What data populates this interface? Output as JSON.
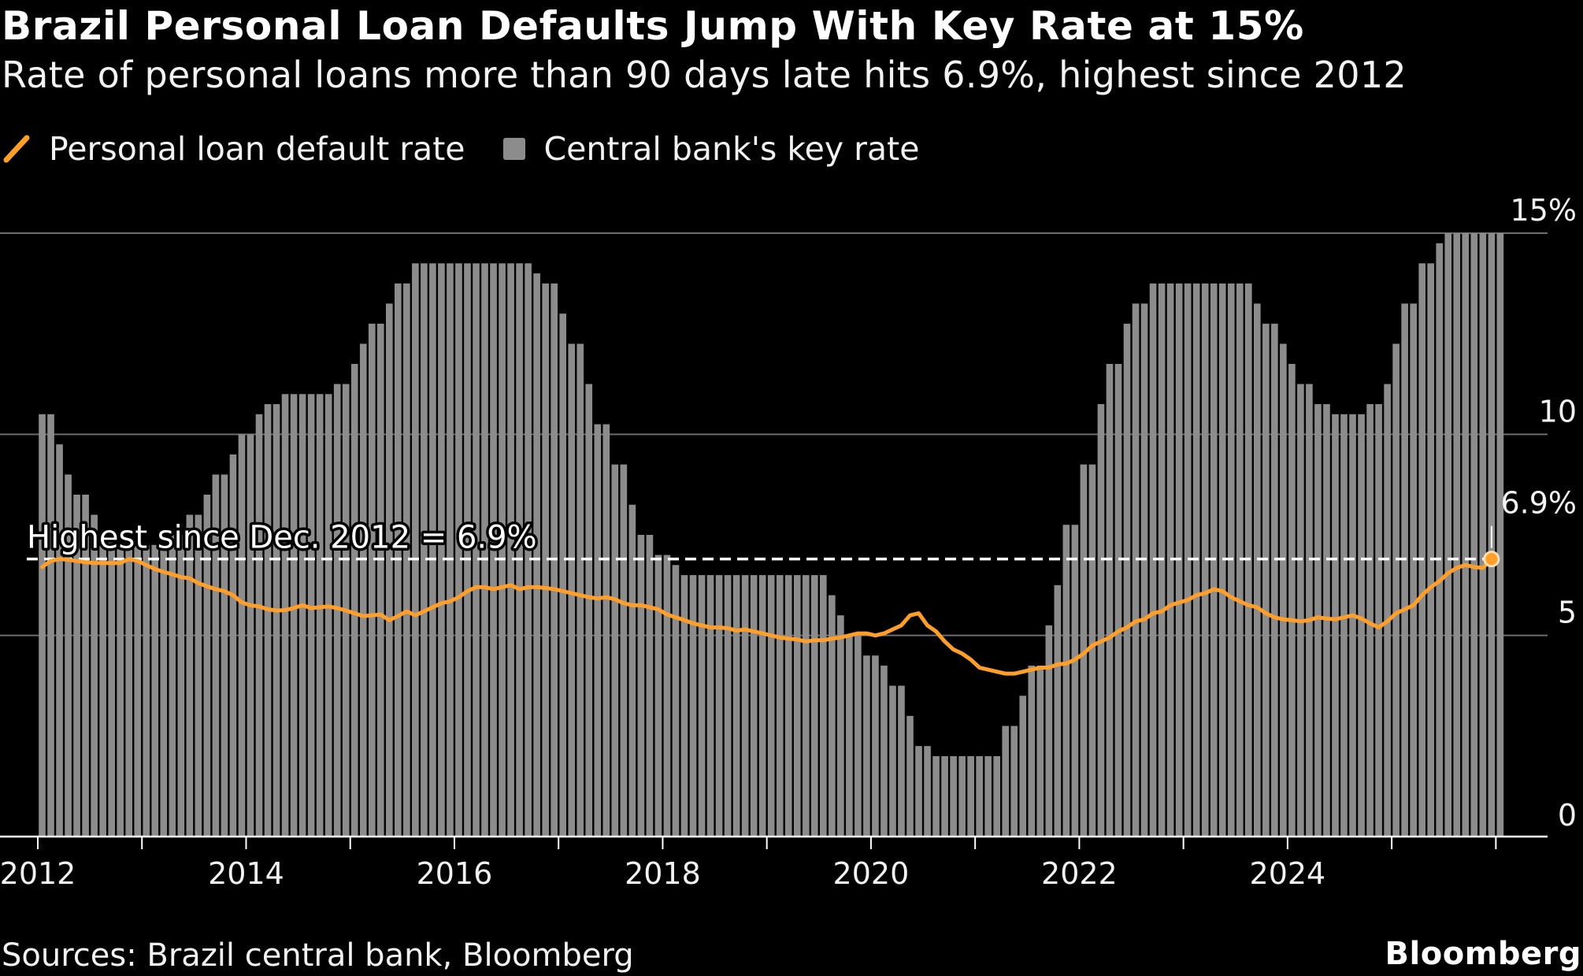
{
  "header": {
    "title": "Brazil Personal Loan Defaults Jump With Key Rate at 15%",
    "subtitle": "Rate of personal loans more than 90 days late hits 6.9%, highest since 2012"
  },
  "legend": {
    "line_label": "Personal loan default rate",
    "bar_label": "Central bank's key rate"
  },
  "footer": {
    "source": "Sources: Brazil central bank, Bloomberg",
    "brand": "Bloomberg"
  },
  "colors": {
    "background": "#000000",
    "line": "#ff9f2a",
    "bars": "#8c8c8c",
    "grid": "#6e6e6e",
    "reference": "#ffffff"
  },
  "chart_data": {
    "type": "bar+line",
    "title": "Brazil Personal Loan Defaults Jump With Key Rate at 15%",
    "start": "2012-01",
    "frequency": "monthly",
    "ylim": [
      0,
      15
    ],
    "y_ticks": [
      {
        "value": 0,
        "label": "0"
      },
      {
        "value": 5,
        "label": "5"
      },
      {
        "value": 10,
        "label": "10"
      },
      {
        "value": 15,
        "label": "15%"
      }
    ],
    "x_ticks": [
      "2012",
      "2014",
      "2016",
      "2018",
      "2020",
      "2022",
      "2024"
    ],
    "reference_line": {
      "value": 6.9,
      "label": "Highest since Dec. 2012 = 6.9%"
    },
    "end_label": "6.9%",
    "series": [
      {
        "name": "Central bank's key rate",
        "kind": "bar",
        "values": [
          10.5,
          10.5,
          9.75,
          9.0,
          8.5,
          8.5,
          8.0,
          7.5,
          7.5,
          7.25,
          7.25,
          7.25,
          7.25,
          7.25,
          7.25,
          7.5,
          7.5,
          8.0,
          8.0,
          8.5,
          9.0,
          9.0,
          9.5,
          10.0,
          10.0,
          10.5,
          10.75,
          10.75,
          11.0,
          11.0,
          11.0,
          11.0,
          11.0,
          11.0,
          11.25,
          11.25,
          11.75,
          12.25,
          12.75,
          12.75,
          13.25,
          13.75,
          13.75,
          14.25,
          14.25,
          14.25,
          14.25,
          14.25,
          14.25,
          14.25,
          14.25,
          14.25,
          14.25,
          14.25,
          14.25,
          14.25,
          14.25,
          14.0,
          13.75,
          13.75,
          13.0,
          12.25,
          12.25,
          11.25,
          10.25,
          10.25,
          9.25,
          9.25,
          8.25,
          7.5,
          7.5,
          7.0,
          7.0,
          6.75,
          6.5,
          6.5,
          6.5,
          6.5,
          6.5,
          6.5,
          6.5,
          6.5,
          6.5,
          6.5,
          6.5,
          6.5,
          6.5,
          6.5,
          6.5,
          6.5,
          6.5,
          6.0,
          5.5,
          5.0,
          5.0,
          4.5,
          4.5,
          4.25,
          3.75,
          3.75,
          3.0,
          2.25,
          2.25,
          2.0,
          2.0,
          2.0,
          2.0,
          2.0,
          2.0,
          2.0,
          2.0,
          2.75,
          2.75,
          3.5,
          4.25,
          4.25,
          5.25,
          6.25,
          7.75,
          7.75,
          9.25,
          9.25,
          10.75,
          11.75,
          11.75,
          12.75,
          13.25,
          13.25,
          13.75,
          13.75,
          13.75,
          13.75,
          13.75,
          13.75,
          13.75,
          13.75,
          13.75,
          13.75,
          13.75,
          13.75,
          13.25,
          12.75,
          12.75,
          12.25,
          11.75,
          11.25,
          11.25,
          10.75,
          10.75,
          10.5,
          10.5,
          10.5,
          10.5,
          10.75,
          10.75,
          11.25,
          12.25,
          13.25,
          13.25,
          14.25,
          14.25,
          14.75,
          15.0,
          15.0,
          15.0,
          15.0,
          15.0,
          15.0,
          15.0
        ]
      },
      {
        "name": "Personal loan default rate",
        "kind": "line",
        "values": [
          6.7,
          6.85,
          6.9,
          6.88,
          6.85,
          6.82,
          6.8,
          6.8,
          6.8,
          6.8,
          6.9,
          6.85,
          6.75,
          6.65,
          6.58,
          6.52,
          6.45,
          6.42,
          6.3,
          6.22,
          6.15,
          6.1,
          6.0,
          5.82,
          5.75,
          5.72,
          5.65,
          5.62,
          5.63,
          5.68,
          5.75,
          5.68,
          5.7,
          5.72,
          5.68,
          5.62,
          5.55,
          5.48,
          5.5,
          5.52,
          5.38,
          5.48,
          5.6,
          5.5,
          5.6,
          5.7,
          5.8,
          5.85,
          5.95,
          6.1,
          6.2,
          6.2,
          6.15,
          6.2,
          6.25,
          6.15,
          6.2,
          6.2,
          6.18,
          6.15,
          6.1,
          6.05,
          6.0,
          5.95,
          5.92,
          5.95,
          5.9,
          5.8,
          5.75,
          5.75,
          5.7,
          5.65,
          5.52,
          5.45,
          5.38,
          5.3,
          5.25,
          5.2,
          5.2,
          5.18,
          5.12,
          5.15,
          5.1,
          5.05,
          5.0,
          4.95,
          4.92,
          4.9,
          4.85,
          4.88,
          4.88,
          4.92,
          4.95,
          5.0,
          5.05,
          5.05,
          5.0,
          5.05,
          5.15,
          5.25,
          5.5,
          5.55,
          5.25,
          5.1,
          4.85,
          4.65,
          4.55,
          4.4,
          4.2,
          4.15,
          4.1,
          4.05,
          4.05,
          4.1,
          4.15,
          4.2,
          4.2,
          4.28,
          4.3,
          4.4,
          4.55,
          4.75,
          4.85,
          4.95,
          5.1,
          5.2,
          5.35,
          5.4,
          5.55,
          5.6,
          5.75,
          5.82,
          5.88,
          6.0,
          6.05,
          6.15,
          6.1,
          5.95,
          5.85,
          5.75,
          5.7,
          5.55,
          5.45,
          5.4,
          5.38,
          5.35,
          5.38,
          5.45,
          5.42,
          5.4,
          5.45,
          5.5,
          5.42,
          5.3,
          5.2,
          5.35,
          5.55,
          5.65,
          5.75,
          6.0,
          6.2,
          6.35,
          6.55,
          6.68,
          6.75,
          6.7,
          6.68,
          6.9
        ]
      }
    ]
  }
}
